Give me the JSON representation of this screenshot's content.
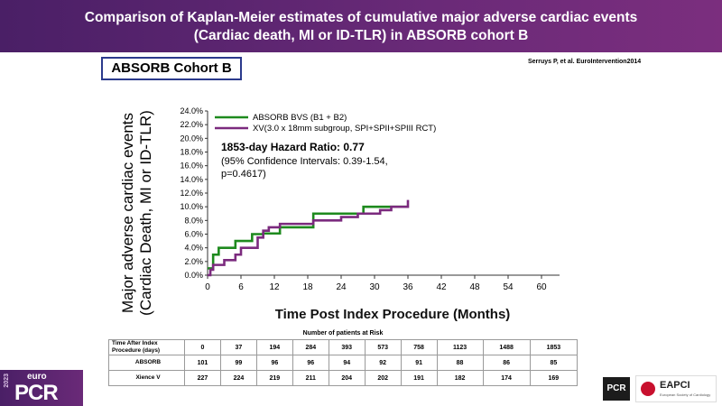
{
  "header": {
    "title_line1": "Comparison of Kaplan-Meier estimates of cumulative major adverse cardiac events",
    "title_line2": "(Cardiac death, MI or ID-TLR) in ABSORB cohort B"
  },
  "cohort_label": "ABSORB Cohort B",
  "citation": "Serruys P, et al. EuroIntervention2014",
  "chart_data": {
    "type": "line",
    "xlabel": "Time Post Index Procedure (Months)",
    "ylabel_line1": "Major adverse cardiac events",
    "ylabel_line2": "(Cardiac Death, MI or ID-TLR)",
    "x_ticks": [
      "0",
      "6",
      "12",
      "18",
      "24",
      "30",
      "36",
      "42",
      "48",
      "54",
      "60"
    ],
    "y_ticks": [
      "0.0%",
      "2.0%",
      "4.0%",
      "6.0%",
      "8.0%",
      "10.0%",
      "12.0%",
      "14.0%",
      "16.0%",
      "18.0%",
      "20.0%",
      "22.0%",
      "24.0%"
    ],
    "xlim": [
      0,
      60
    ],
    "ylim": [
      0,
      24
    ],
    "legend_position": "top-left",
    "series": [
      {
        "name": "ABSORB BVS (B1 + B2)",
        "color": "#1e8a1e",
        "x": [
          0,
          1,
          1,
          2,
          2,
          5,
          5,
          8,
          8,
          10,
          10,
          13,
          13,
          19,
          19,
          28,
          28,
          36
        ],
        "y": [
          1.0,
          1.0,
          3.0,
          3.0,
          4.0,
          4.0,
          5.0,
          5.0,
          6.0,
          6.0,
          6.1,
          6.1,
          7.0,
          7.0,
          9.0,
          9.0,
          10.0,
          10.0
        ]
      },
      {
        "name": "XV(3.0 x 18mm subgroup, SPI+SPII+SPIII RCT)",
        "color": "#7b2a7e",
        "x": [
          0,
          0.5,
          0.5,
          1,
          1,
          3,
          3,
          5,
          5,
          6,
          6,
          9,
          9,
          10,
          10,
          11,
          11,
          13,
          13,
          19,
          19,
          24,
          24,
          27,
          27,
          31,
          31,
          33,
          33,
          36,
          36
        ],
        "y": [
          0,
          0,
          0.8,
          0.8,
          1.5,
          1.5,
          2.2,
          2.2,
          3.0,
          3.0,
          4.0,
          4.0,
          5.5,
          5.5,
          6.5,
          6.5,
          7.0,
          7.0,
          7.5,
          7.5,
          8.0,
          8.0,
          8.5,
          8.5,
          9.0,
          9.0,
          9.5,
          9.5,
          10.0,
          10.0,
          11.0
        ]
      }
    ],
    "annotation_title": "1853-day Hazard Ratio: 0.77",
    "annotation_line2": "(95% Confidence Intervals: 0.39-1.54,",
    "annotation_line3": "p=0.4617)"
  },
  "risk_table": {
    "caption": "Number of patients at Risk",
    "header_label": "Time After Index Procedure (days)",
    "timepoints": [
      "0",
      "37",
      "194",
      "284",
      "393",
      "573",
      "758",
      "1123",
      "1488",
      "1853"
    ],
    "rows": [
      {
        "label": "ABSORB",
        "values": [
          "101",
          "99",
          "96",
          "96",
          "94",
          "92",
          "91",
          "88",
          "86",
          "85"
        ]
      },
      {
        "label": "Xience V",
        "values": [
          "227",
          "224",
          "219",
          "211",
          "204",
          "202",
          "191",
          "182",
          "174",
          "169"
        ]
      }
    ]
  },
  "footer": {
    "year": "2023",
    "brand_small": "euro",
    "brand_large": "PCR",
    "pcr_badge": "PCR",
    "eapci_name": "EAPCI",
    "eapci_sub": "European Society of Cardiology"
  }
}
